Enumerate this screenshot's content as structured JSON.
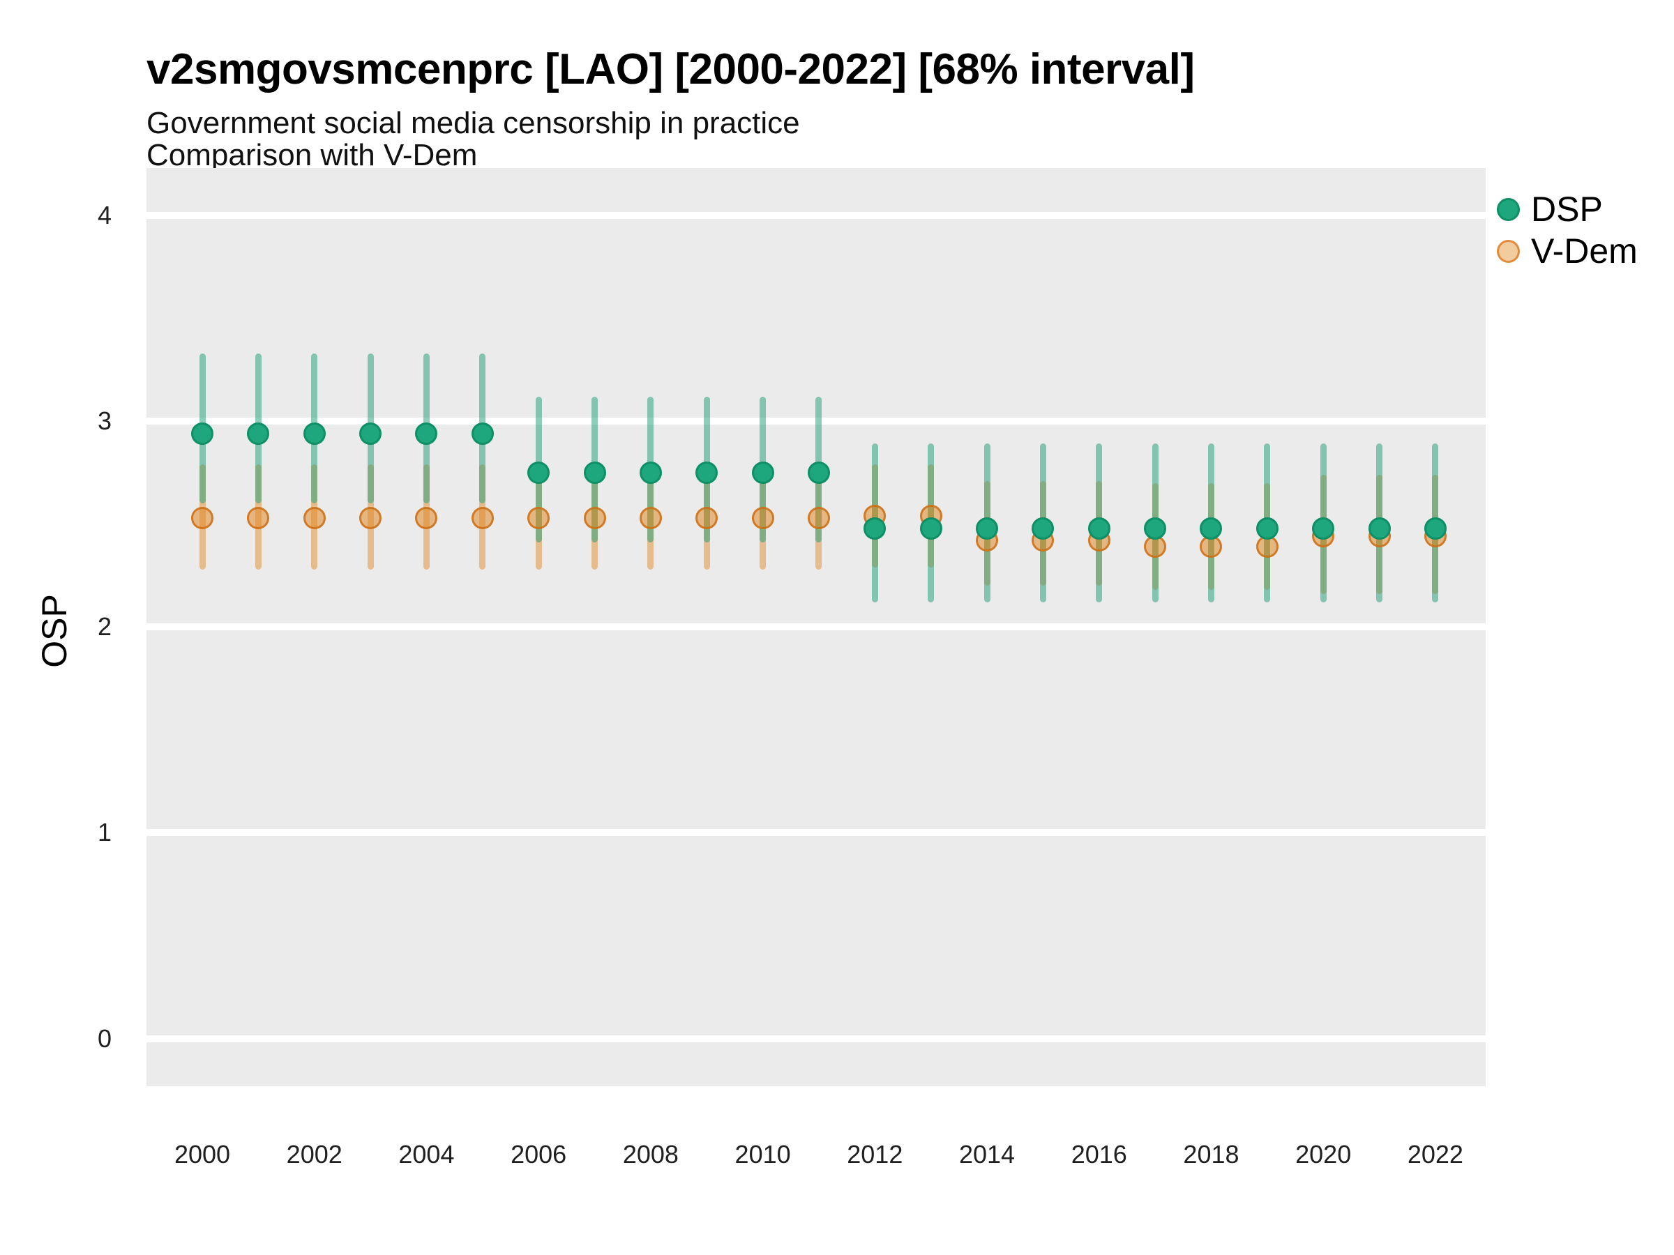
{
  "header": {
    "title": "v2smgovsmcenprc [LAO] [2000-2022] [68% interval]",
    "subtitle1": "Government social media censorship in practice",
    "subtitle2": "Comparison with V-Dem"
  },
  "legend": {
    "position": "right",
    "items": [
      {
        "label": "DSP",
        "color": "#1b9e77"
      },
      {
        "label": "V-Dem",
        "color": "#e0821a"
      }
    ]
  },
  "axes": {
    "y_title": "OSP",
    "y_ticks": [
      4,
      3,
      2,
      1,
      0
    ],
    "x_ticks": [
      2000,
      2002,
      2004,
      2006,
      2008,
      2010,
      2012,
      2014,
      2016,
      2018,
      2020,
      2022
    ]
  },
  "colors": {
    "panel_background": "#ebebeb",
    "gridline": "#ffffff",
    "dsp_base": "#1b9e77",
    "dsp_dot_fill": "#1ea67c",
    "dsp_dot_ring": "#0e8f66",
    "dsp_line_rgba": "rgba(27,158,119,0.5)",
    "vdem_base": "#e0821a",
    "vdem_dot_fill_rgba": "rgba(224,130,26,0.5)",
    "vdem_dot_ring_rgba": "rgba(205,110,20,0.85)",
    "vdem_line_rgba": "rgba(224,130,26,0.45)",
    "text": "#000000"
  },
  "chart_data": {
    "type": "pointrange",
    "title": "v2smgovsmcenprc [LAO] [2000-2022] [68% interval]",
    "subtitle": "Government social media censorship in practice — Comparison with V-Dem",
    "xlabel": "",
    "ylabel": "OSP",
    "ylim": [
      -0.23,
      4.23
    ],
    "xlim": [
      1999,
      2023
    ],
    "grid": "horizontal-major-only",
    "legend_position": "right",
    "interval": "68%",
    "x": [
      2000,
      2001,
      2002,
      2003,
      2004,
      2005,
      2006,
      2007,
      2008,
      2009,
      2010,
      2011,
      2012,
      2013,
      2014,
      2015,
      2016,
      2017,
      2018,
      2019,
      2020,
      2021,
      2022
    ],
    "series": [
      {
        "name": "DSP",
        "points": [
          2.94,
          2.94,
          2.94,
          2.94,
          2.94,
          2.94,
          2.75,
          2.75,
          2.75,
          2.75,
          2.75,
          2.75,
          2.48,
          2.48,
          2.48,
          2.48,
          2.48,
          2.48,
          2.48,
          2.48,
          2.48,
          2.48,
          2.48
        ],
        "lo": [
          2.6,
          2.6,
          2.6,
          2.6,
          2.6,
          2.6,
          2.41,
          2.41,
          2.41,
          2.41,
          2.41,
          2.41,
          2.12,
          2.12,
          2.12,
          2.12,
          2.12,
          2.12,
          2.12,
          2.12,
          2.12,
          2.12,
          2.12
        ],
        "hi": [
          3.33,
          3.33,
          3.33,
          3.33,
          3.33,
          3.33,
          3.12,
          3.12,
          3.12,
          3.12,
          3.12,
          3.12,
          2.89,
          2.89,
          2.89,
          2.89,
          2.89,
          2.89,
          2.89,
          2.89,
          2.89,
          2.89,
          2.89
        ]
      },
      {
        "name": "V-Dem",
        "points": [
          2.53,
          2.53,
          2.53,
          2.53,
          2.53,
          2.53,
          2.53,
          2.53,
          2.53,
          2.53,
          2.53,
          2.53,
          2.54,
          2.54,
          2.42,
          2.42,
          2.42,
          2.39,
          2.39,
          2.39,
          2.44,
          2.44,
          2.44
        ],
        "lo": [
          2.28,
          2.28,
          2.28,
          2.28,
          2.28,
          2.28,
          2.28,
          2.28,
          2.28,
          2.28,
          2.28,
          2.28,
          2.29,
          2.29,
          2.2,
          2.2,
          2.2,
          2.18,
          2.18,
          2.18,
          2.16,
          2.16,
          2.16
        ],
        "hi": [
          2.79,
          2.79,
          2.79,
          2.79,
          2.79,
          2.79,
          2.79,
          2.79,
          2.79,
          2.79,
          2.79,
          2.79,
          2.79,
          2.79,
          2.71,
          2.71,
          2.71,
          2.7,
          2.7,
          2.7,
          2.74,
          2.74,
          2.74
        ]
      }
    ]
  }
}
